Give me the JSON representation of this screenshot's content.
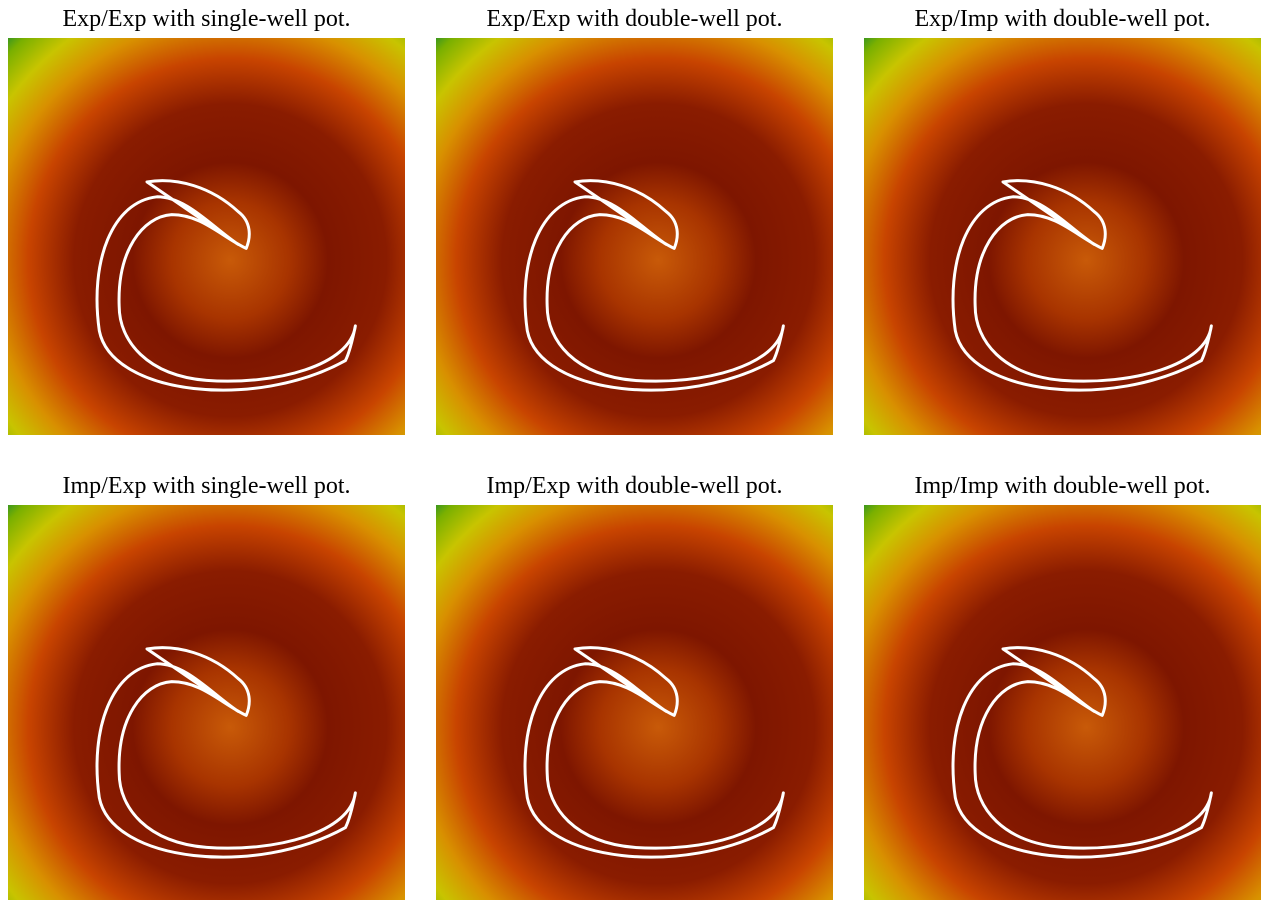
{
  "panels": [
    {
      "title": "Exp/Exp with single-well pot."
    },
    {
      "title": "Exp/Exp with double-well pot."
    },
    {
      "title": "Exp/Imp with double-well pot."
    },
    {
      "title": "Imp/Exp with single-well pot."
    },
    {
      "title": "Imp/Exp with double-well pot."
    },
    {
      "title": "Imp/Imp with double-well pot."
    }
  ]
}
